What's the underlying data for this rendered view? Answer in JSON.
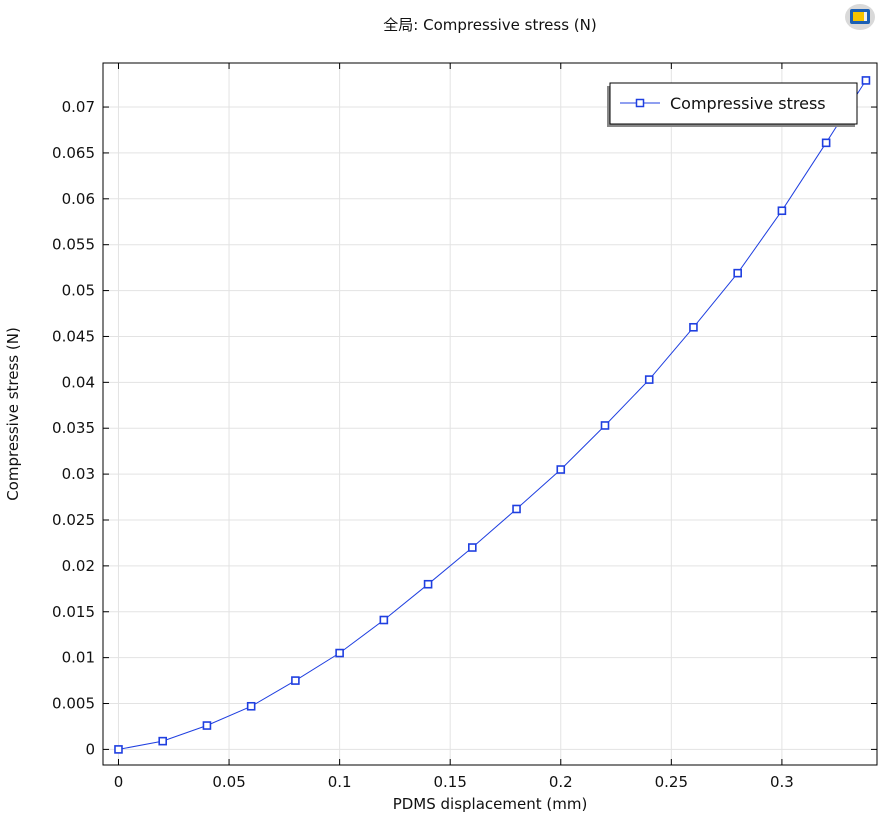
{
  "header": {
    "title": "全局: Compressive stress (N)",
    "logo_icon": "comsol-logo-icon"
  },
  "colors": {
    "series": "#1f3fe0",
    "grid": "#e3e3e3",
    "axis": "#000000"
  },
  "chart_data": {
    "type": "line",
    "title": "全局: Compressive stress (N)",
    "xlabel": "PDMS displacement (mm)",
    "ylabel": "Compressive stress (N)",
    "xlim": [
      -0.007,
      0.343
    ],
    "ylim": [
      -0.0017,
      0.0748
    ],
    "x_ticks": [
      0,
      0.05,
      0.1,
      0.15,
      0.2,
      0.25,
      0.3
    ],
    "x_tick_labels": [
      "0",
      "0.05",
      "0.1",
      "0.15",
      "0.2",
      "0.25",
      "0.3"
    ],
    "y_ticks": [
      0,
      0.005,
      0.01,
      0.015,
      0.02,
      0.025,
      0.03,
      0.035,
      0.04,
      0.045,
      0.05,
      0.055,
      0.06,
      0.065,
      0.07
    ],
    "y_tick_labels": [
      "0",
      "0.005",
      "0.01",
      "0.015",
      "0.02",
      "0.025",
      "0.03",
      "0.035",
      "0.04",
      "0.045",
      "0.05",
      "0.055",
      "0.06",
      "0.065",
      "0.07"
    ],
    "grid": true,
    "legend_position": "top-right",
    "series": [
      {
        "name": "Compressive stress",
        "marker": "square",
        "x": [
          0,
          0.02,
          0.04,
          0.06,
          0.08,
          0.1,
          0.12,
          0.14,
          0.16,
          0.18,
          0.2,
          0.22,
          0.24,
          0.26,
          0.28,
          0.3,
          0.32,
          0.338
        ],
        "y": [
          0,
          0.0009,
          0.0026,
          0.0047,
          0.0075,
          0.0105,
          0.0141,
          0.018,
          0.022,
          0.0262,
          0.0305,
          0.0353,
          0.0403,
          0.046,
          0.0519,
          0.0587,
          0.0661,
          0.0729
        ]
      }
    ]
  }
}
